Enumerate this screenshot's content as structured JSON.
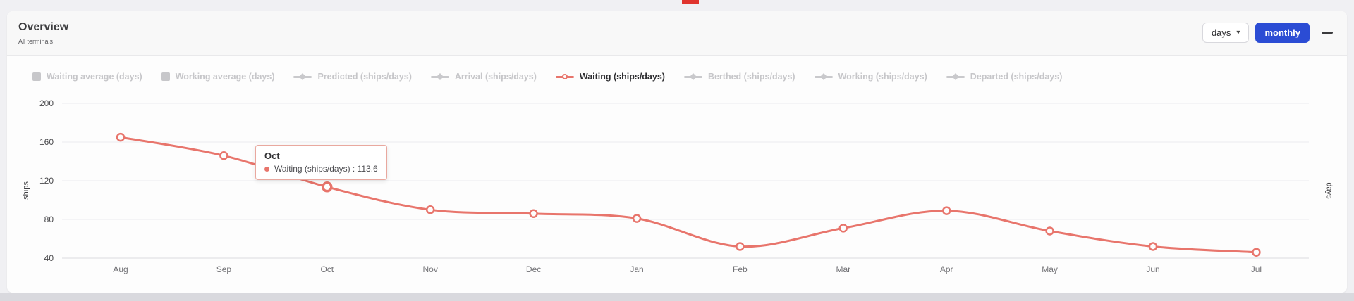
{
  "header": {
    "title": "Overview",
    "subtitle": "All terminals",
    "interval_select": {
      "value": "days",
      "caret": "▾"
    },
    "monthly_button_label": "monthly"
  },
  "chart_data": {
    "type": "line",
    "x": [
      "Aug",
      "Sep",
      "Oct",
      "Nov",
      "Dec",
      "Jan",
      "Feb",
      "Mar",
      "Apr",
      "May",
      "Jun",
      "Jul"
    ],
    "series": [
      {
        "name": "Waiting (ships/days)",
        "color": "#e8756c",
        "values": [
          165,
          146,
          113.6,
          90,
          86,
          81,
          52,
          71,
          89,
          68,
          52,
          46
        ]
      }
    ],
    "yticks": [
      40,
      80,
      120,
      160,
      200
    ],
    "ylim": [
      40,
      200
    ],
    "ylabel_left": "ships",
    "ylabel_right": "days",
    "grid": true,
    "legend_position": "top",
    "legend": [
      {
        "label": "Waiting average (days)",
        "icon": "square",
        "active": false
      },
      {
        "label": "Working average (days)",
        "icon": "square",
        "active": false
      },
      {
        "label": "Predicted (ships/days)",
        "icon": "diamond-line",
        "active": false
      },
      {
        "label": "Arrival (ships/days)",
        "icon": "diamond-line",
        "active": false
      },
      {
        "label": "Waiting (ships/days)",
        "icon": "circle-line",
        "active": true
      },
      {
        "label": "Berthed (ships/days)",
        "icon": "diamond-line",
        "active": false
      },
      {
        "label": "Working (ships/days)",
        "icon": "diamond-line",
        "active": false
      },
      {
        "label": "Departed (ships/days)",
        "icon": "diamond-line",
        "active": false
      }
    ],
    "highlight_index": 2,
    "tooltip": {
      "title": "Oct",
      "series": "Waiting (ships/days)",
      "value": "113.6",
      "text": "Waiting (ships/days) : 113.6"
    }
  },
  "colors": {
    "accent": "#e8756c",
    "primary_button": "#2b4cd4",
    "page_bg": "#f0f0f3",
    "card_bg": "#fdfdfd",
    "header_bg": "#f8f8f8",
    "disabled_legend": "#c6c6c9"
  }
}
